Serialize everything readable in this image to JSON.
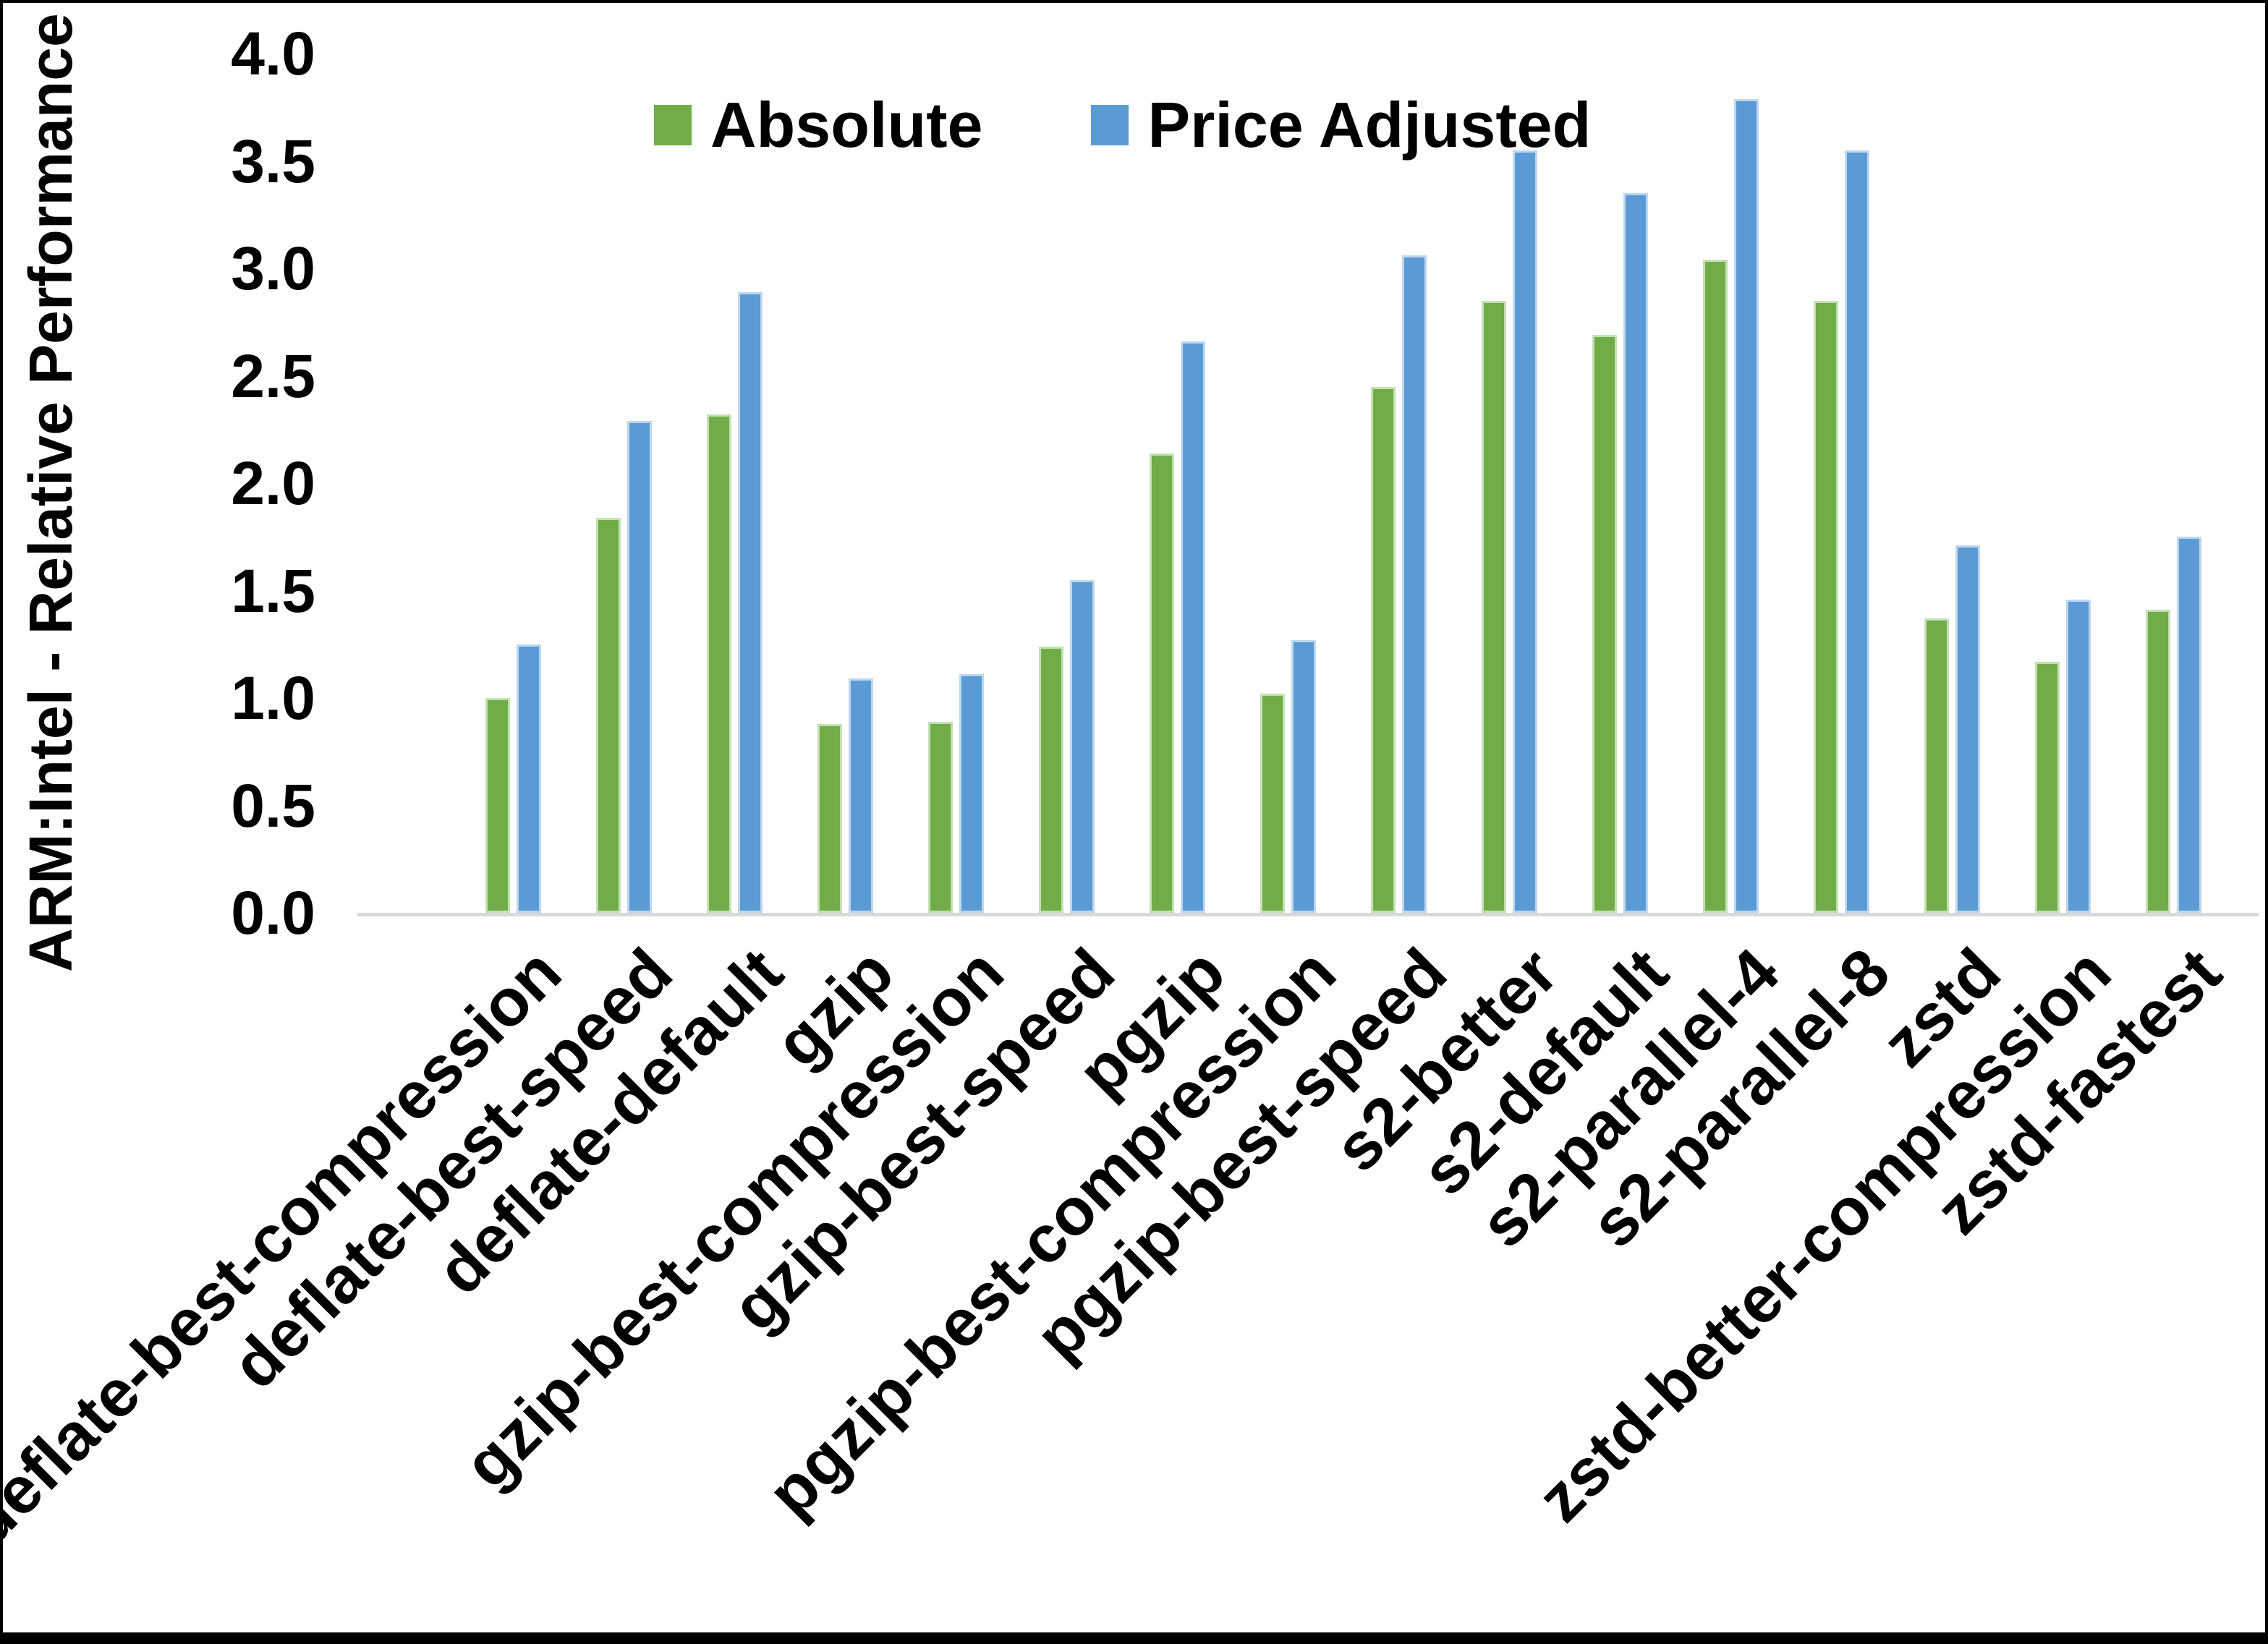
{
  "chart_data": {
    "type": "bar",
    "title": "",
    "xlabel": "",
    "ylabel": "ARM:Intel - Relative Performance",
    "ylim": [
      0.0,
      4.0
    ],
    "ytick_step": 0.5,
    "ytick_labels": [
      "0.0",
      "0.5",
      "1.0",
      "1.5",
      "2.0",
      "2.5",
      "3.0",
      "3.5",
      "4.0"
    ],
    "grid": false,
    "legend_position": "top-center",
    "axis_line_color": "#D9D9D9",
    "categories": [
      "deflate-best-compression",
      "deflate-best-speed",
      "deflate-default",
      "gzip",
      "gzip-best-compression",
      "gzip-best-speed",
      "pgzip",
      "pgzip-best-compression",
      "pgzip-best-speed",
      "s2-better",
      "s2-default",
      "s2-parallel-4",
      "s2-parallel-8",
      "zstd",
      "zstd-better-compression",
      "zstd-fastest"
    ],
    "series": [
      {
        "name": "Absolute",
        "color": "#70AD47",
        "values": [
          1.0,
          1.84,
          2.32,
          0.88,
          0.89,
          1.24,
          2.14,
          1.02,
          2.45,
          2.85,
          2.69,
          3.04,
          2.85,
          1.37,
          1.17,
          1.41
        ]
      },
      {
        "name": "Price Adjusted",
        "color": "#5B9BD5",
        "values": [
          1.25,
          2.29,
          2.89,
          1.09,
          1.11,
          1.55,
          2.66,
          1.27,
          3.06,
          3.55,
          3.35,
          3.79,
          3.55,
          1.71,
          1.46,
          1.75
        ]
      }
    ]
  }
}
